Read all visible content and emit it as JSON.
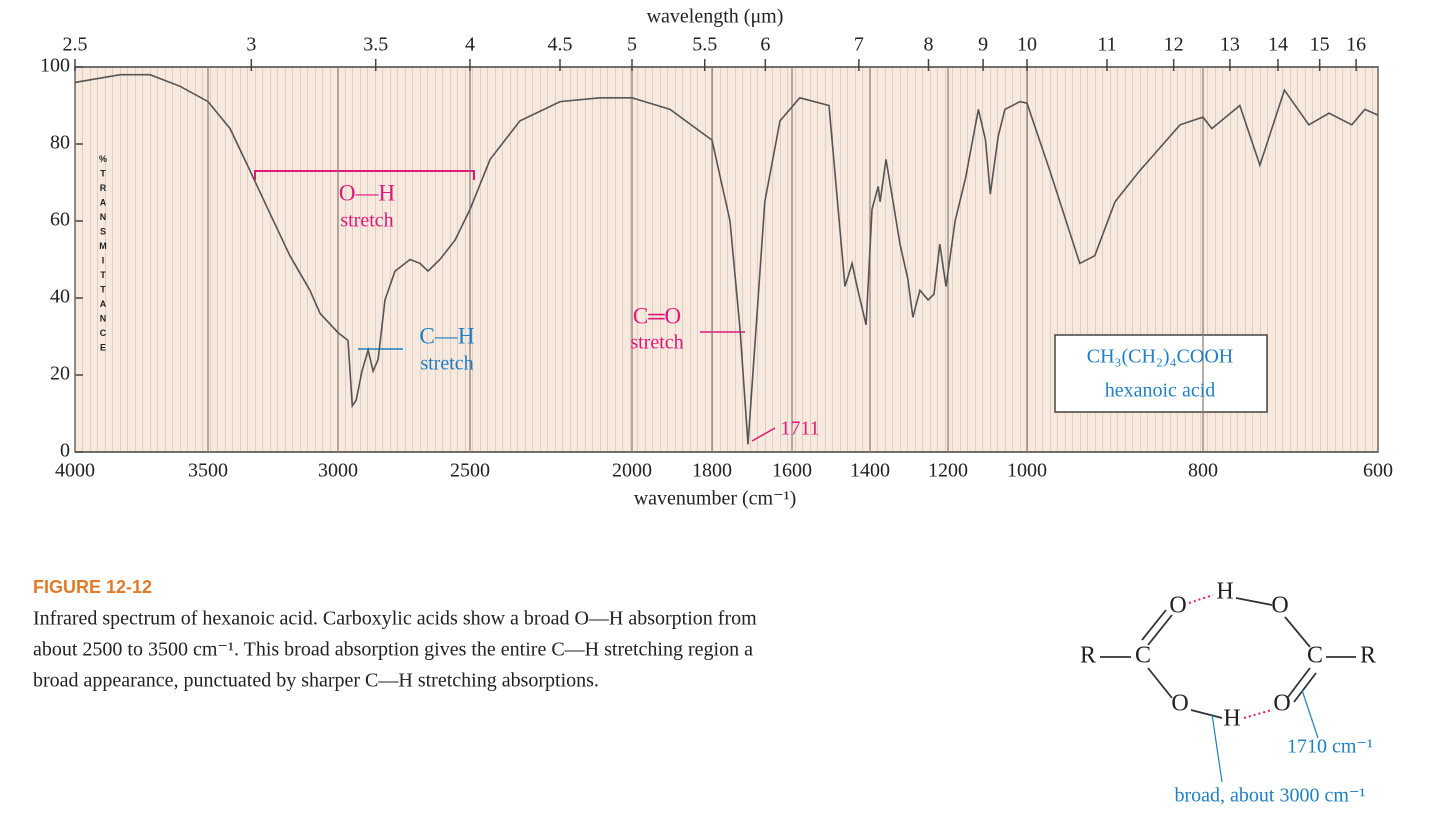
{
  "chart_data": {
    "type": "line",
    "x_label": "wavenumber (cm⁻¹)",
    "x2_label": "wavelength (μm)",
    "y_label": "%TRANSMITTANCE",
    "color": "#555555",
    "x": [
      4000,
      3830,
      3718,
      3605,
      3500,
      3415,
      3338,
      3262,
      3185,
      3108,
      3069,
      3000,
      2962,
      2946,
      2931,
      2909,
      2886,
      2867,
      2848,
      2822,
      2784,
      2727,
      2689,
      2659,
      2614,
      2557,
      2500,
      2438,
      2346,
      2222,
      2099,
      2000,
      1905,
      1800,
      1755,
      1730,
      1710,
      1690,
      1668,
      1630,
      1580,
      1505,
      1464,
      1446,
      1431,
      1410,
      1395,
      1379,
      1374,
      1359,
      1344,
      1323,
      1303,
      1290,
      1272,
      1251,
      1236,
      1221,
      1205,
      1182,
      1156,
      1123,
      1105,
      1093,
      1073,
      1056,
      1018,
      1000,
      974,
      940,
      923,
      900,
      872,
      826,
      800,
      790,
      758,
      735,
      707,
      679,
      656,
      630,
      615,
      600
    ],
    "values": [
      96,
      98,
      98,
      95,
      91,
      84,
      73,
      62,
      51,
      42,
      36,
      31,
      29,
      12,
      13.5,
      21,
      26.5,
      21,
      24,
      39.5,
      47,
      50,
      49,
      47,
      50,
      55,
      63,
      76,
      86,
      91,
      92,
      92,
      89,
      81,
      60,
      32,
      2,
      32,
      65,
      86,
      92,
      90,
      43,
      49,
      42,
      33,
      63,
      69,
      65,
      76,
      67,
      54,
      45,
      35,
      42,
      39.5,
      41,
      54,
      43,
      60,
      71,
      89,
      81,
      67,
      82,
      89,
      91,
      90.6,
      73,
      49,
      51,
      65,
      73,
      85,
      87,
      84,
      90,
      74.5,
      94,
      85,
      88,
      85,
      89,
      87.5
    ],
    "xlim": [
      4000,
      600
    ],
    "xticks": [
      4000,
      3500,
      3000,
      2500,
      2000,
      1800,
      1600,
      1400,
      1200,
      1000,
      800,
      600
    ],
    "x2ticks": [
      2.5,
      3,
      3.5,
      4,
      4.5,
      5,
      5.5,
      6,
      7,
      8,
      9,
      10,
      11,
      12,
      13,
      14,
      15,
      16
    ],
    "ylim": [
      0,
      100
    ],
    "yticks": [
      0,
      20,
      40,
      60,
      80,
      100
    ],
    "annotations": [
      "O—H",
      "stretch",
      "C—H",
      "stretch",
      "C═O",
      "stretch",
      "1711",
      "CH₃(CH₂)₄COOH",
      "hexanoic acid"
    ]
  },
  "caption": {
    "label": "FIGURE 12-12",
    "lines": [
      "Infrared spectrum of hexanoic acid. Carboxylic acids show a broad O—H absorption from",
      "about 2500 to 3500 cm⁻¹. This broad absorption gives the entire C—H stretching region a",
      "broad appearance, punctuated by sharper C—H stretching absorptions."
    ]
  },
  "dimer": {
    "atoms": [
      "R",
      "C",
      "O",
      "H",
      "O",
      "C",
      "R",
      "O",
      "H",
      "O"
    ],
    "labels": [
      "1710 cm⁻¹",
      "broad, about 3000 cm⁻¹"
    ]
  }
}
